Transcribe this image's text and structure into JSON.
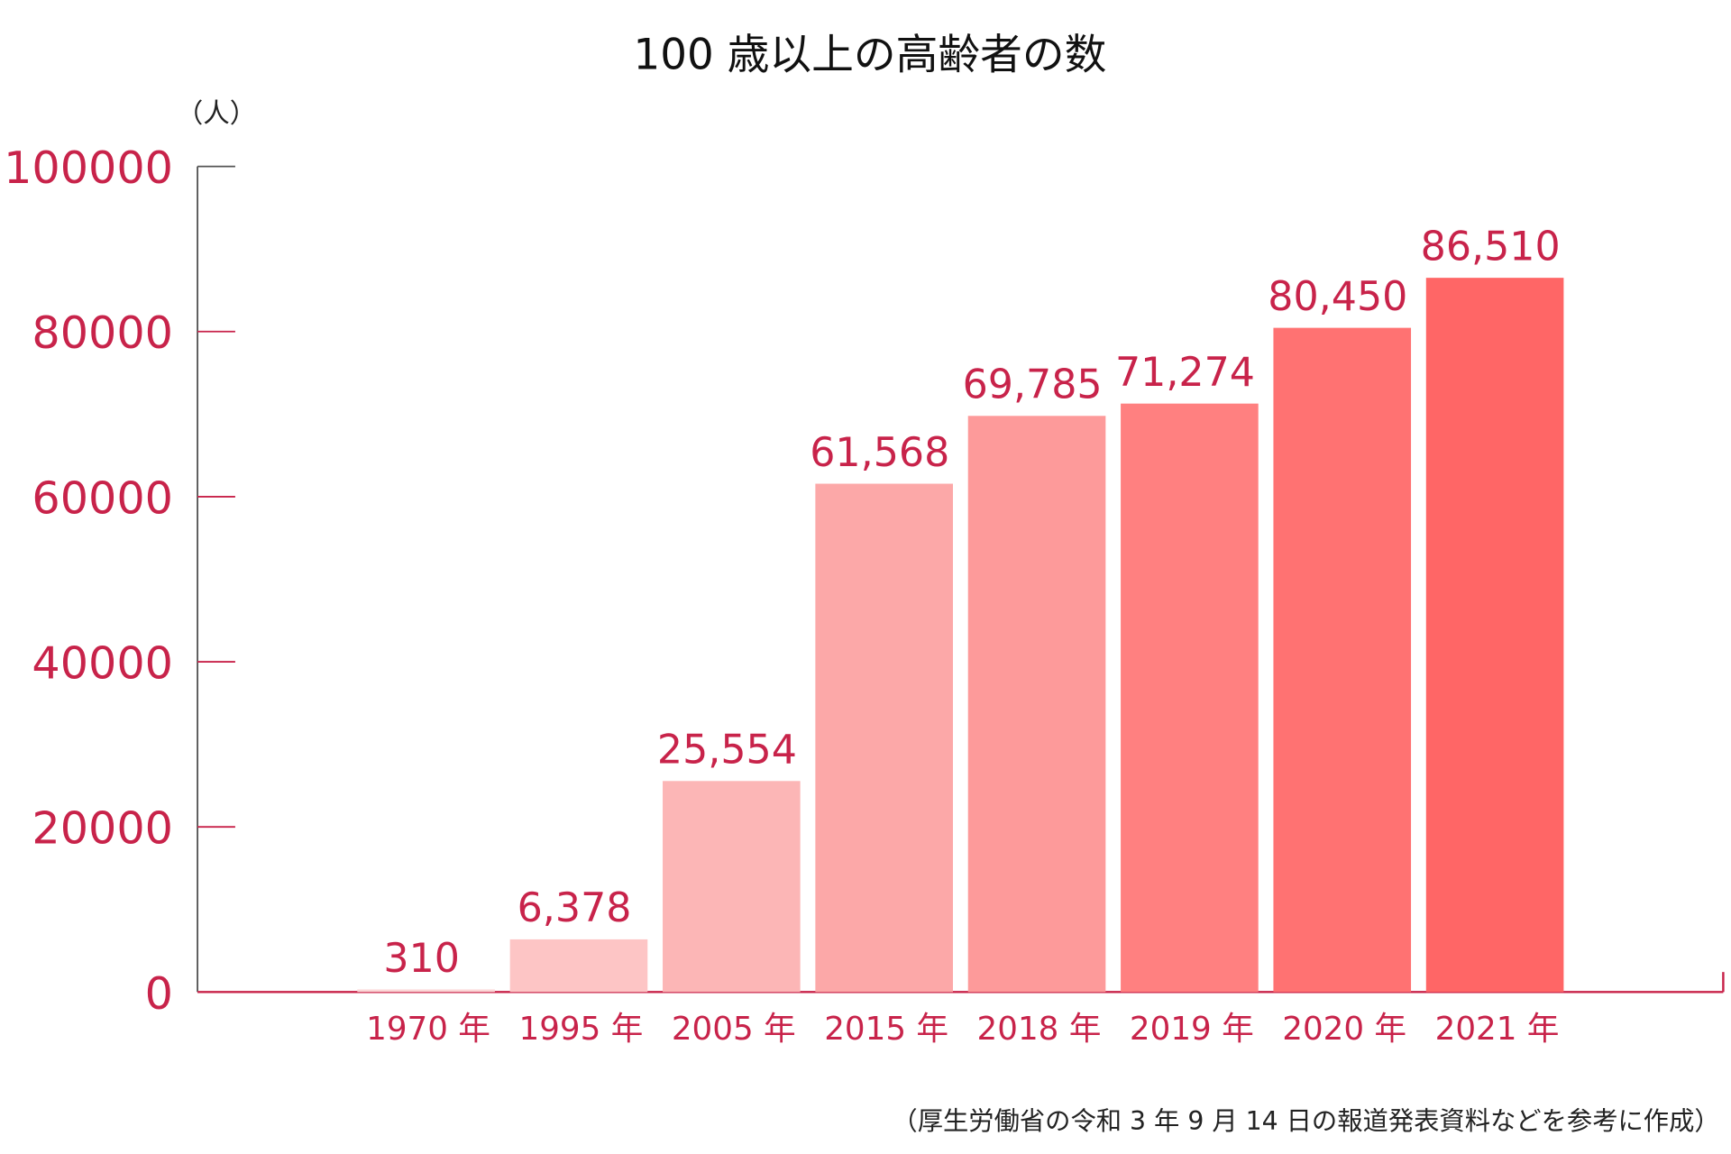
{
  "chart_data": {
    "type": "bar",
    "title": "100 歳以上の高齢者の数",
    "ylabel": "（人）",
    "xlabel": "",
    "categories": [
      "1970 年",
      "1995 年",
      "2005 年",
      "2015 年",
      "2018 年",
      "2019 年",
      "2020 年",
      "2021 年"
    ],
    "values": [
      310,
      6378,
      25554,
      61568,
      69785,
      71274,
      80450,
      86510
    ],
    "data_labels": [
      "310",
      "6,378",
      "25,554",
      "61,568",
      "69,785",
      "71,274",
      "80,450",
      "86,510"
    ],
    "bar_colors": [
      "#fbd6d6",
      "#fdc5c5",
      "#fcb6b6",
      "#fca8a8",
      "#fd9a9a",
      "#ff8080",
      "#ff7272",
      "#ff6666"
    ],
    "ylim": [
      0,
      100000
    ],
    "yticks": [
      "0",
      "20000",
      "40000",
      "60000",
      "80000",
      "100000"
    ],
    "ytick_values": [
      0,
      20000,
      40000,
      60000,
      80000,
      100000
    ],
    "grid": false,
    "axis_color": "#c8234a",
    "note": "（厚生労働省の令和 3 年 9 月 14 日の報道発表資料などを参考に作成）"
  }
}
